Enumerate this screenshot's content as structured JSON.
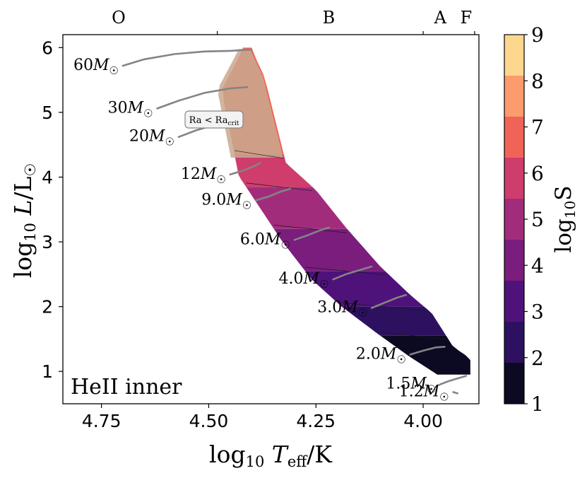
{
  "chart_data": {
    "type": "heatmap",
    "title": "",
    "xlabel": "log10 Teff/K",
    "ylabel": "log10 L/L☉",
    "xlim": [
      4.84,
      3.87
    ],
    "ylim": [
      0.5,
      6.2
    ],
    "x_ticks": [
      4.75,
      4.5,
      4.25,
      4.0
    ],
    "x_tick_labels": [
      "4.75",
      "4.50",
      "4.25",
      "4.00"
    ],
    "y_ticks": [
      1,
      2,
      3,
      4,
      5,
      6
    ],
    "y_tick_labels": [
      "1",
      "2",
      "3",
      "4",
      "5",
      "6"
    ],
    "spectral_classes": [
      {
        "label": "O",
        "x": 4.71
      },
      {
        "label": "B",
        "x": 4.22
      },
      {
        "label": "A",
        "x": 3.96
      },
      {
        "label": "F",
        "x": 3.9
      }
    ],
    "spectral_boundaries": [
      4.48,
      4.0,
      3.88
    ],
    "panel_label": "HeII inner",
    "region_annotation": "Ra < Ra_crit",
    "colorbar": {
      "label": "log10 S",
      "range": [
        1,
        9
      ],
      "ticks": [
        "1",
        "2",
        "3",
        "4",
        "5",
        "6",
        "7",
        "8",
        "9"
      ],
      "colors": [
        "#0c0a22",
        "#2d1160",
        "#4f127b",
        "#7a1d7d",
        "#a22c7c",
        "#cf3d6d",
        "#f06457",
        "#fc9b6c",
        "#fed78f"
      ]
    },
    "tracks": [
      {
        "label": "60M☉",
        "x": [
          4.7,
          4.65,
          4.58,
          4.51,
          4.45,
          4.4
        ],
        "y": [
          5.72,
          5.82,
          5.9,
          5.94,
          5.95,
          5.97
        ]
      },
      {
        "label": "30M☉",
        "x": [
          4.62,
          4.57,
          4.51,
          4.45,
          4.41
        ],
        "y": [
          5.06,
          5.18,
          5.3,
          5.37,
          5.39
        ]
      },
      {
        "label": "20M☉",
        "x": [
          4.57,
          4.53,
          4.49,
          4.47
        ],
        "y": [
          4.62,
          4.72,
          4.8,
          4.82
        ]
      },
      {
        "label": "12M☉",
        "x": [
          4.45,
          4.42,
          4.39,
          4.38
        ],
        "y": [
          4.04,
          4.1,
          4.18,
          4.22
        ]
      },
      {
        "label": "9.0M☉",
        "x": [
          4.39,
          4.36,
          4.33,
          4.31
        ],
        "y": [
          3.64,
          3.7,
          3.78,
          3.82
        ]
      },
      {
        "label": "6.0M☉",
        "x": [
          4.3,
          4.27,
          4.24,
          4.22
        ],
        "y": [
          3.03,
          3.1,
          3.18,
          3.22
        ]
      },
      {
        "label": "4.0M☉",
        "x": [
          4.21,
          4.18,
          4.14,
          4.12
        ],
        "y": [
          2.42,
          2.5,
          2.58,
          2.62
        ]
      },
      {
        "label": "3.0M☉",
        "x": [
          4.12,
          4.09,
          4.06,
          4.04
        ],
        "y": [
          1.98,
          2.06,
          2.14,
          2.18
        ]
      },
      {
        "label": "2.0M☉",
        "x": [
          4.03,
          4.0,
          3.97,
          3.95
        ],
        "y": [
          1.26,
          1.32,
          1.37,
          1.38
        ]
      },
      {
        "label": "1.5M☉",
        "x": [
          3.96,
          3.94,
          3.92,
          3.9
        ],
        "y": [
          0.8,
          0.85,
          0.89,
          0.93
        ]
      },
      {
        "label": "1.2M☉",
        "x": [
          3.93,
          3.92
        ],
        "y": [
          0.68,
          0.66
        ]
      }
    ],
    "band_left_edge": {
      "x": [
        4.42,
        4.47,
        4.43,
        4.39,
        4.33,
        4.26,
        4.19,
        4.11,
        4.03,
        3.96
      ],
      "y": [
        5.97,
        5.35,
        4.02,
        3.62,
        3.02,
        2.42,
        2.0,
        1.6,
        1.22,
        0.92
      ]
    },
    "band_right_edge": {
      "x": [
        4.4,
        4.37,
        4.32,
        4.25,
        4.18,
        4.1,
        4.03,
        3.98,
        3.93,
        3.89
      ],
      "y": [
        5.97,
        5.55,
        4.22,
        3.8,
        3.22,
        2.62,
        2.18,
        1.9,
        1.38,
        1.2
      ]
    },
    "band_regions": [
      {
        "y_from": 0.95,
        "y_to": 1.55,
        "log10_S": 1.5
      },
      {
        "y_from": 1.55,
        "y_to": 2.0,
        "log10_S": 2.5
      },
      {
        "y_from": 2.0,
        "y_to": 2.55,
        "log10_S": 3.5
      },
      {
        "y_from": 2.55,
        "y_to": 3.2,
        "log10_S": 4.5
      },
      {
        "y_from": 3.2,
        "y_to": 3.85,
        "log10_S": 5.5
      },
      {
        "y_from": 3.85,
        "y_to": 4.35,
        "log10_S": 6.5
      },
      {
        "y_from": 4.35,
        "y_to": 6.0,
        "log10_S": 7.5
      }
    ],
    "upper_region_shading": "desaturated (Ra < Ra_crit)"
  }
}
